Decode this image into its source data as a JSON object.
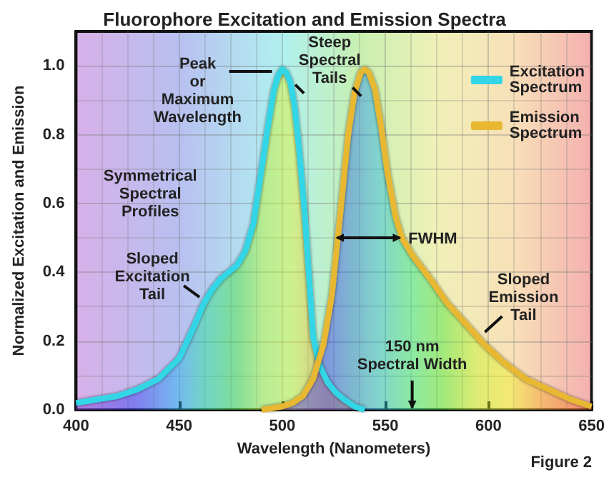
{
  "chart_data": {
    "type": "area",
    "title": "Fluorophore Excitation and Emission Spectra",
    "xlabel": "Wavelength (Nanometers)",
    "ylabel": "Normalized Excitation and Emission",
    "xlim": [
      400,
      650
    ],
    "xticks": [
      400,
      450,
      500,
      550,
      600,
      650
    ],
    "ylim": [
      0,
      1.1
    ],
    "yticks": [
      {
        "value": 0,
        "label": "0.0"
      },
      {
        "value": 0.2,
        "label": "0.2"
      },
      {
        "value": 0.4,
        "label": "0.4"
      },
      {
        "value": 0.6,
        "label": "0.6"
      },
      {
        "value": 0.8,
        "label": "0.8"
      },
      {
        "value": 1,
        "label": "1.0"
      }
    ],
    "grid": true,
    "legend": "top right",
    "series": [
      {
        "name": "Excitation Spectrum",
        "color": "#33d6e6",
        "x": [
          400,
          410,
          420,
          430,
          440,
          450,
          457,
          462,
          466,
          470,
          474,
          478,
          482,
          486,
          490,
          493,
          496,
          498,
          500,
          502,
          504,
          506,
          508,
          511,
          515,
          518,
          522,
          526,
          530,
          535,
          540
        ],
        "values": [
          0.02,
          0.03,
          0.04,
          0.06,
          0.09,
          0.15,
          0.24,
          0.31,
          0.35,
          0.38,
          0.4,
          0.42,
          0.46,
          0.54,
          0.7,
          0.82,
          0.93,
          0.97,
          0.99,
          0.98,
          0.95,
          0.88,
          0.77,
          0.56,
          0.21,
          0.13,
          0.08,
          0.05,
          0.03,
          0.01,
          0
        ]
      },
      {
        "name": "Emission Spectrum",
        "color": "#e8b830",
        "x": [
          490,
          500,
          505,
          510,
          515,
          520,
          524,
          528,
          532,
          535,
          538,
          540,
          542,
          545,
          548,
          551,
          555,
          558,
          563,
          568,
          573,
          580,
          589,
          598,
          607,
          618,
          629,
          640,
          650
        ],
        "values": [
          0,
          0.01,
          0.02,
          0.04,
          0.09,
          0.19,
          0.33,
          0.56,
          0.8,
          0.92,
          0.98,
          0.99,
          0.98,
          0.93,
          0.82,
          0.69,
          0.56,
          0.5,
          0.45,
          0.41,
          0.37,
          0.31,
          0.25,
          0.19,
          0.14,
          0.09,
          0.06,
          0.03,
          0.01
        ]
      }
    ],
    "annotations": [
      "Peak\nor\nMaximum\nWavelength",
      "Steep\nSpectral\nTails",
      "Symmetrical\nSpectral\nProfiles",
      "Sloped\nExcitation\nTail",
      "FWHM",
      "Sloped\nEmission\nTail",
      "150 nm\nSpectral Width",
      "Figure 2"
    ]
  }
}
